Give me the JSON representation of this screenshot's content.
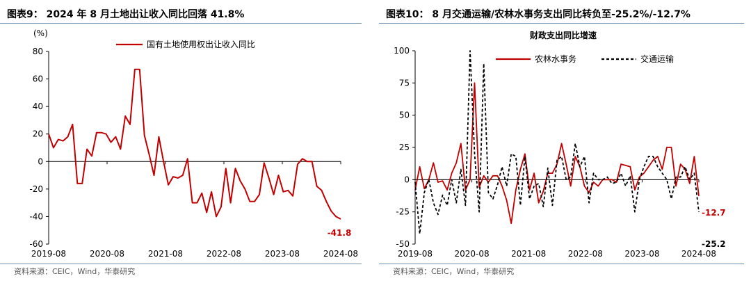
{
  "left": {
    "title": "图表9：  2024 年 8 月土地出让收入同比回落 41.8%",
    "source": "资料来源：CEIC，Wind，华泰研究",
    "chart_data": {
      "type": "line",
      "title": "",
      "ylabel": "(%)",
      "ylim": [
        -60,
        80
      ],
      "yticks": [
        "80",
        "60",
        "40",
        "20",
        "0",
        "-20",
        "-40",
        "-60"
      ],
      "xticks": [
        "2019-08",
        "2020-08",
        "2021-08",
        "2022-08",
        "2023-08",
        "2024-08"
      ],
      "legend_position": "top",
      "series": [
        {
          "name": "国有土地使用权出让收入同比",
          "color": "#c00000",
          "values": [
            20,
            10,
            16,
            15,
            18,
            27,
            -16,
            -16,
            9,
            4,
            21,
            21,
            20,
            14,
            18,
            9,
            33,
            27,
            67,
            67,
            19,
            5,
            -10,
            18,
            0,
            -17,
            -11,
            -12,
            -10,
            2,
            -30,
            -30,
            -23,
            -37,
            -22,
            -40,
            -33,
            -5,
            -30,
            -5,
            -14,
            -20,
            -29,
            -29,
            -24,
            -1,
            -12,
            -24,
            -10,
            -22,
            -21,
            -25,
            -2,
            2,
            0,
            0,
            -18,
            -21,
            -29,
            -36,
            -40,
            -41.8
          ],
          "last_label": "-41.8"
        }
      ]
    }
  },
  "right": {
    "title": "图表10：  8 月交通运输/农林水事务支出同比转负至-25.2%/-12.7%",
    "source": "资料来源：CEIC，Wind，华泰研究",
    "chart_data": {
      "type": "line",
      "title": "财政支出同比增速",
      "ylabel": "",
      "ylim": [
        -50,
        100
      ],
      "yticks": [
        "100",
        "75",
        "50",
        "25",
        "0",
        "-25",
        "-50"
      ],
      "xticks": [
        "2019-08",
        "2020-08",
        "2021-08",
        "2022-08",
        "2023-08",
        "2024-08"
      ],
      "legend_position": "top",
      "series": [
        {
          "name": "农林水事务",
          "color": "#c00000",
          "dash": "",
          "values": [
            -8,
            10,
            -7,
            0,
            13,
            -2,
            -1,
            -8,
            5,
            13,
            28,
            -8,
            0,
            75,
            -6,
            3,
            -2,
            3,
            3,
            -5,
            -16,
            -34,
            -8,
            8,
            20,
            -8,
            5,
            -18,
            -9,
            5,
            5,
            12,
            28,
            12,
            -5,
            18,
            10,
            -5,
            -10,
            -2,
            -5,
            0,
            0,
            0,
            -2,
            12,
            11,
            10,
            -8,
            2,
            5,
            10,
            15,
            18,
            8,
            25,
            25,
            -5,
            12,
            8,
            -3,
            18,
            -12.7
          ],
          "last_label": "-12.7"
        },
        {
          "name": "交通运输",
          "color": "#000000",
          "dash": "4,3",
          "values": [
            -2,
            -42,
            -10,
            0,
            -18,
            -27,
            -12,
            -20,
            0,
            -18,
            8,
            -20,
            100,
            20,
            -25,
            90,
            -10,
            -15,
            -4,
            10,
            -5,
            20,
            18,
            -20,
            18,
            -15,
            -5,
            -3,
            -21,
            9,
            -20,
            15,
            18,
            0,
            2,
            28,
            10,
            18,
            -18,
            5,
            0,
            0,
            2,
            -3,
            -2,
            5,
            -5,
            3,
            -25,
            0,
            10,
            18,
            18,
            10,
            5,
            0,
            -15,
            2,
            2,
            10,
            0,
            5,
            -25.2
          ],
          "last_label": "-25.2"
        }
      ]
    }
  }
}
